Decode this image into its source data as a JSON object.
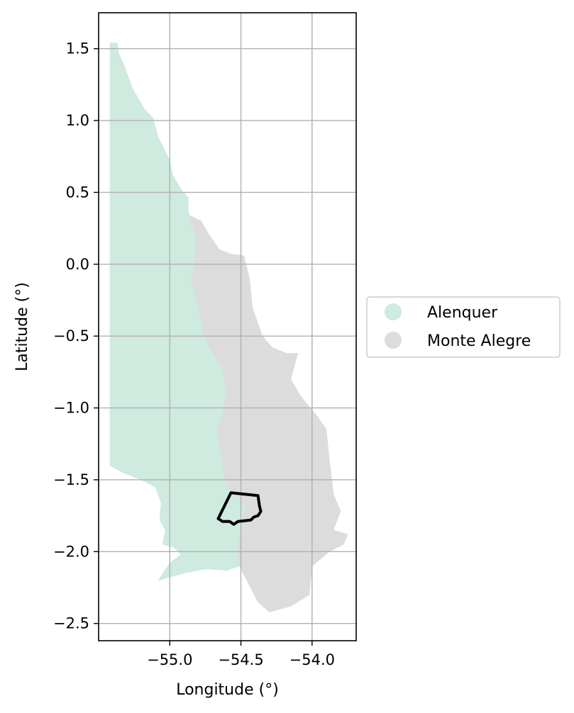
{
  "map": {
    "xlabel": "Longitude (°)",
    "ylabel": "Latitude (°)",
    "xlim": [
      -55.5,
      -53.69
    ],
    "ylim": [
      -2.62,
      1.75
    ],
    "grid": true,
    "xticks": [
      {
        "value": -55.0,
        "label": "−55.0"
      },
      {
        "value": -54.5,
        "label": "−54.5"
      },
      {
        "value": -54.0,
        "label": "−54.0"
      }
    ],
    "yticks": [
      {
        "value": 1.5,
        "label": "1.5"
      },
      {
        "value": 1.0,
        "label": "1.0"
      },
      {
        "value": 0.5,
        "label": "0.5"
      },
      {
        "value": 0.0,
        "label": "0.0"
      },
      {
        "value": -0.5,
        "label": "−0.5"
      },
      {
        "value": -1.0,
        "label": "−1.0"
      },
      {
        "value": -1.5,
        "label": "−1.5"
      },
      {
        "value": -2.0,
        "label": "−2.0"
      },
      {
        "value": -2.5,
        "label": "−2.5"
      }
    ],
    "legend": {
      "placement": "right-outside",
      "entries": [
        {
          "label": "Alenquer",
          "color": "#cfeadf"
        },
        {
          "label": "Monte Alegre",
          "color": "#dcdcdc"
        }
      ]
    },
    "regions": [
      {
        "name": "Alenquer",
        "color": "#cfeadf",
        "coords": [
          [
            -55.42,
            1.54
          ],
          [
            -55.37,
            1.54
          ],
          [
            -55.36,
            1.47
          ],
          [
            -55.32,
            1.38
          ],
          [
            -55.26,
            1.22
          ],
          [
            -55.18,
            1.08
          ],
          [
            -55.12,
            1.02
          ],
          [
            -55.08,
            0.88
          ],
          [
            -55.0,
            0.72
          ],
          [
            -54.98,
            0.62
          ],
          [
            -54.92,
            0.52
          ],
          [
            -54.87,
            0.46
          ],
          [
            -54.87,
            0.36
          ],
          [
            -54.82,
            0.2
          ],
          [
            -54.82,
            0.04
          ],
          [
            -54.85,
            -0.1
          ],
          [
            -54.8,
            -0.3
          ],
          [
            -54.76,
            -0.5
          ],
          [
            -54.68,
            -0.65
          ],
          [
            -54.62,
            -0.75
          ],
          [
            -54.6,
            -0.9
          ],
          [
            -54.62,
            -1.02
          ],
          [
            -54.67,
            -1.18
          ],
          [
            -54.63,
            -1.35
          ],
          [
            -54.62,
            -1.5
          ],
          [
            -54.55,
            -1.6
          ],
          [
            -54.47,
            -1.67
          ],
          [
            -54.49,
            -1.8
          ],
          [
            -54.52,
            -1.96
          ],
          [
            -54.51,
            -2.1
          ],
          [
            -54.6,
            -2.13
          ],
          [
            -54.75,
            -2.12
          ],
          [
            -54.9,
            -2.15
          ],
          [
            -55.08,
            -2.2
          ],
          [
            -55.0,
            -2.08
          ],
          [
            -54.92,
            -2.02
          ],
          [
            -54.97,
            -1.97
          ],
          [
            -55.05,
            -1.95
          ],
          [
            -55.03,
            -1.85
          ],
          [
            -55.07,
            -1.78
          ],
          [
            -55.06,
            -1.66
          ],
          [
            -55.1,
            -1.55
          ],
          [
            -55.2,
            -1.5
          ],
          [
            -55.33,
            -1.45
          ],
          [
            -55.42,
            -1.4
          ]
        ]
      },
      {
        "name": "Monte Alegre",
        "color": "#dcdcdc",
        "coords": [
          [
            -54.88,
            0.35
          ],
          [
            -54.78,
            0.3
          ],
          [
            -54.72,
            0.2
          ],
          [
            -54.65,
            0.1
          ],
          [
            -54.57,
            0.07
          ],
          [
            -54.48,
            0.06
          ],
          [
            -54.44,
            -0.1
          ],
          [
            -54.42,
            -0.3
          ],
          [
            -54.35,
            -0.5
          ],
          [
            -54.28,
            -0.58
          ],
          [
            -54.18,
            -0.62
          ],
          [
            -54.1,
            -0.62
          ],
          [
            -54.15,
            -0.8
          ],
          [
            -54.08,
            -0.92
          ],
          [
            -53.97,
            -1.05
          ],
          [
            -53.9,
            -1.15
          ],
          [
            -53.88,
            -1.35
          ],
          [
            -53.85,
            -1.6
          ],
          [
            -53.8,
            -1.72
          ],
          [
            -53.85,
            -1.85
          ],
          [
            -53.75,
            -1.88
          ],
          [
            -53.78,
            -1.95
          ],
          [
            -53.88,
            -2.0
          ],
          [
            -54.0,
            -2.1
          ],
          [
            -54.02,
            -2.3
          ],
          [
            -54.15,
            -2.38
          ],
          [
            -54.3,
            -2.42
          ],
          [
            -54.38,
            -2.35
          ],
          [
            -54.51,
            -2.1
          ],
          [
            -54.52,
            -1.96
          ],
          [
            -54.49,
            -1.8
          ],
          [
            -54.47,
            -1.67
          ],
          [
            -54.55,
            -1.6
          ],
          [
            -54.62,
            -1.5
          ],
          [
            -54.63,
            -1.35
          ],
          [
            -54.67,
            -1.18
          ],
          [
            -54.62,
            -1.02
          ],
          [
            -54.6,
            -0.9
          ],
          [
            -54.62,
            -0.75
          ],
          [
            -54.68,
            -0.65
          ],
          [
            -54.76,
            -0.5
          ],
          [
            -54.8,
            -0.3
          ],
          [
            -54.85,
            -0.1
          ],
          [
            -54.82,
            0.04
          ],
          [
            -54.82,
            0.2
          ],
          [
            -54.87,
            0.36
          ]
        ]
      }
    ],
    "boundary": {
      "name": "outlined area",
      "color": "#000000",
      "coords": [
        [
          -54.57,
          -1.59
        ],
        [
          -54.38,
          -1.61
        ],
        [
          -54.37,
          -1.68
        ],
        [
          -54.36,
          -1.72
        ],
        [
          -54.38,
          -1.75
        ],
        [
          -54.41,
          -1.76
        ],
        [
          -54.43,
          -1.78
        ],
        [
          -54.52,
          -1.79
        ],
        [
          -54.55,
          -1.81
        ],
        [
          -54.58,
          -1.79
        ],
        [
          -54.63,
          -1.79
        ],
        [
          -54.66,
          -1.77
        ]
      ]
    }
  }
}
